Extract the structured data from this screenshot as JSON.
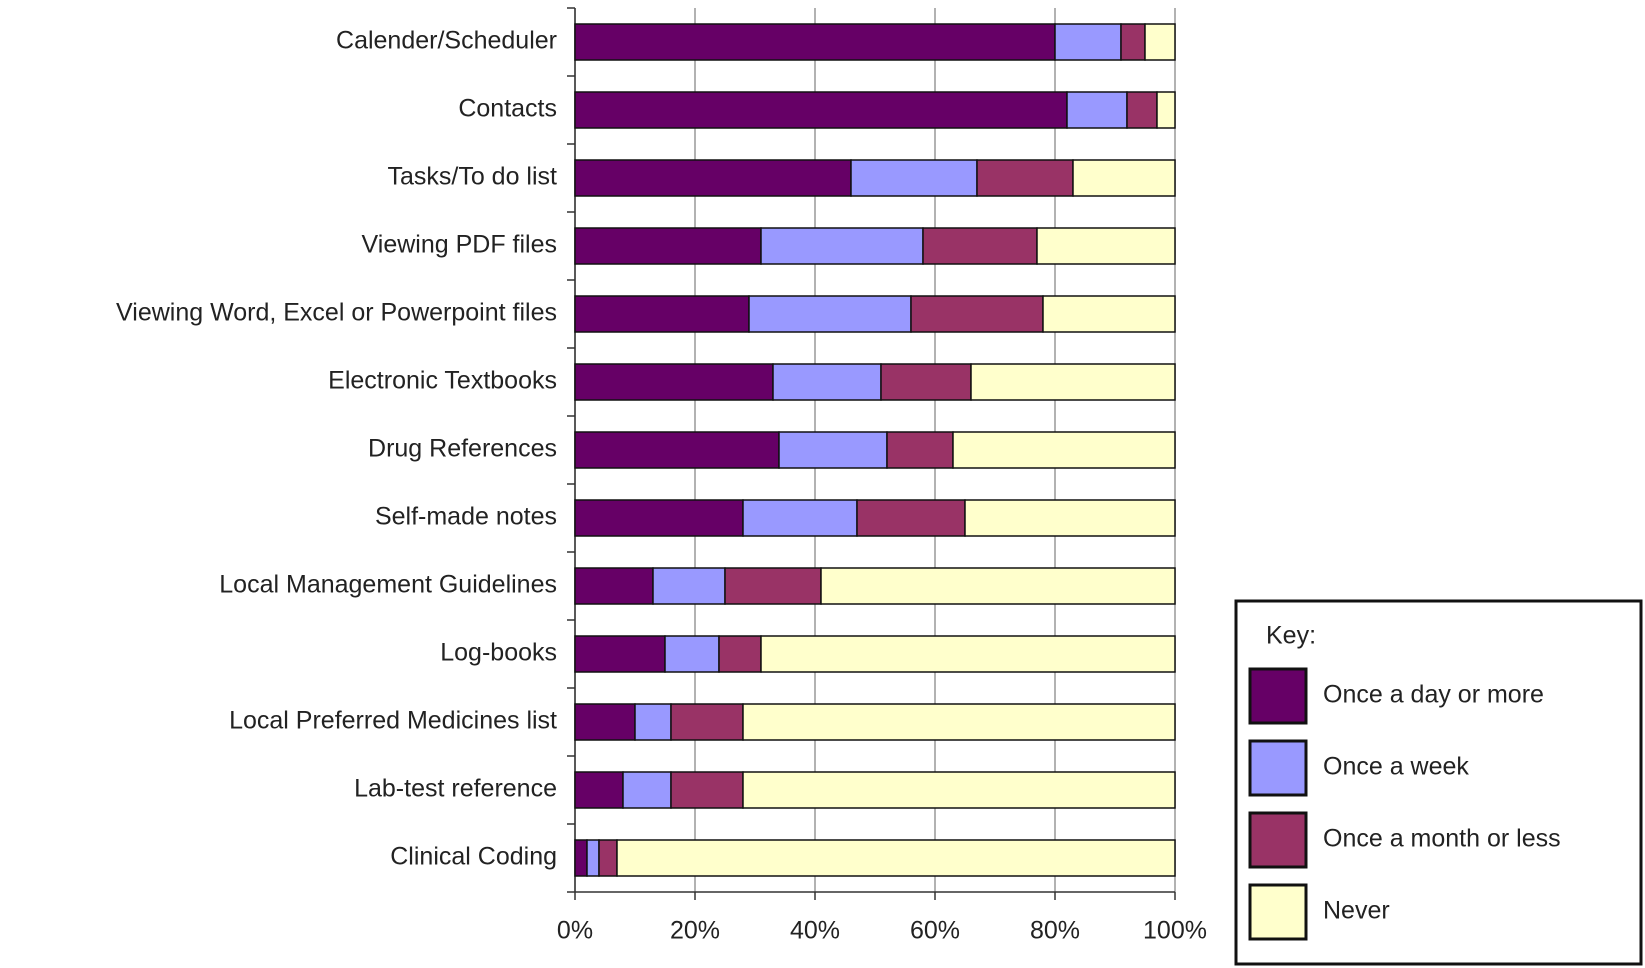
{
  "chart_data": {
    "type": "stacked_bar_horizontal",
    "categories": [
      "Calender/Scheduler",
      "Contacts",
      "Tasks/To do list",
      "Viewing PDF files",
      "Viewing Word, Excel or Powerpoint files",
      "Electronic Textbooks",
      "Drug References",
      "Self-made notes",
      "Local Management Guidelines",
      "Log-books",
      "Local Preferred Medicines list",
      "Lab-test reference",
      "Clinical Coding"
    ],
    "series": [
      {
        "name": "Once a day or more",
        "color": "#660066",
        "values": [
          80,
          82,
          46,
          31,
          29,
          33,
          34,
          28,
          13,
          15,
          10,
          8,
          2
        ]
      },
      {
        "name": "Once a week",
        "color": "#9999ff",
        "values": [
          11,
          10,
          21,
          27,
          27,
          18,
          18,
          19,
          12,
          9,
          6,
          8,
          2
        ]
      },
      {
        "name": "Once a month or less",
        "color": "#993366",
        "values": [
          4,
          5,
          16,
          19,
          22,
          15,
          11,
          18,
          16,
          7,
          12,
          12,
          3
        ]
      },
      {
        "name": "Never",
        "color": "#ffffcc",
        "values": [
          5,
          3,
          17,
          23,
          22,
          34,
          37,
          35,
          59,
          69,
          72,
          72,
          93
        ]
      }
    ],
    "xlim": [
      0,
      100
    ],
    "xticks": [
      {
        "value": 0,
        "label": "0%"
      },
      {
        "value": 20,
        "label": "20%"
      },
      {
        "value": 40,
        "label": "40%"
      },
      {
        "value": 60,
        "label": "60%"
      },
      {
        "value": 80,
        "label": "80%"
      },
      {
        "value": 100,
        "label": "100%"
      }
    ],
    "grid": true,
    "legend_title": "Key:",
    "legend_position": "lower right"
  }
}
